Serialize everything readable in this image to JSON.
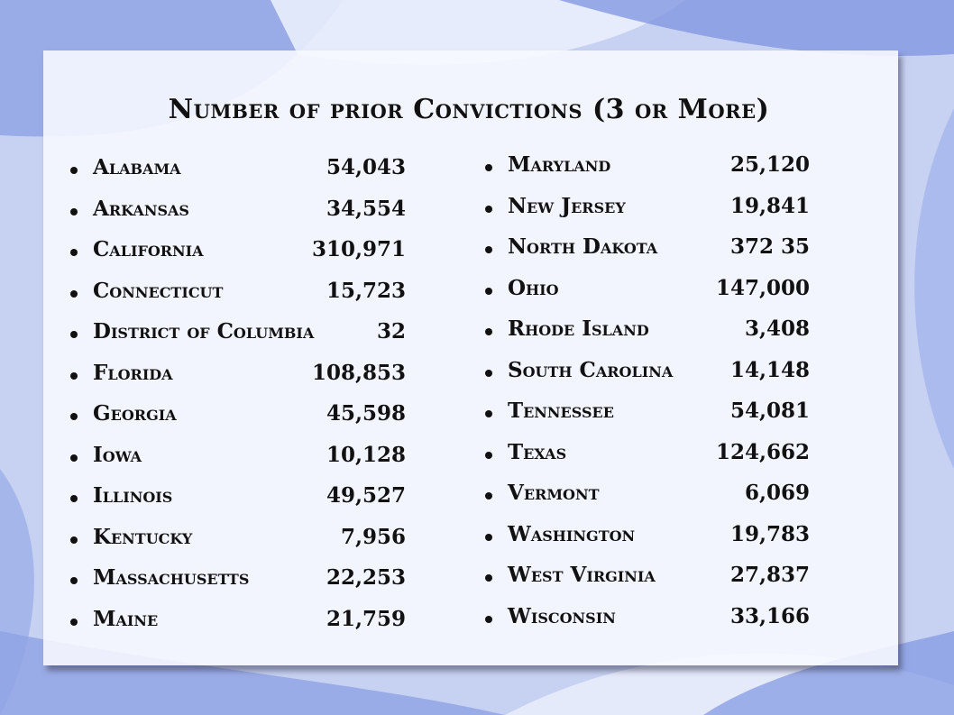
{
  "title": "Number of prior Convictions  (3 or More)",
  "left_column": [
    {
      "state": "Alabama",
      "count": "54,043"
    },
    {
      "state": "Arkansas",
      "count": "34,554"
    },
    {
      "state": "California",
      "count": "310,971"
    },
    {
      "state": "Connecticut",
      "count": "15,723"
    },
    {
      "state": "District of Columbia",
      "count": "32"
    },
    {
      "state": "Florida",
      "count": "108,853"
    },
    {
      "state": "Georgia",
      "count": "45,598"
    },
    {
      "state": "Iowa",
      "count": "10,128"
    },
    {
      "state": "Illinois",
      "count": "49,527"
    },
    {
      "state": "Kentucky",
      "count": "7,956"
    },
    {
      "state": "Massachusetts",
      "count": "22,253"
    },
    {
      "state": "Maine",
      "count": "21,759"
    }
  ],
  "right_column": [
    {
      "state": "Maryland",
      "count": "25,120"
    },
    {
      "state": "New Jersey",
      "count": "19,841"
    },
    {
      "state": "North Dakota",
      "count": "372 35"
    },
    {
      "state": "Ohio",
      "count": "147,000"
    },
    {
      "state": "Rhode Island",
      "count": "3,408"
    },
    {
      "state": "South Carolina",
      "count": "14,148"
    },
    {
      "state": "Tennessee",
      "count": "54,081"
    },
    {
      "state": "Texas",
      "count": "124,662"
    },
    {
      "state": "Vermont",
      "count": "6,069"
    },
    {
      "state": "Washington",
      "count": "19,783"
    },
    {
      "state": "West Virginia",
      "count": "27,837"
    },
    {
      "state": "Wisconsin",
      "count": "33,166"
    }
  ]
}
